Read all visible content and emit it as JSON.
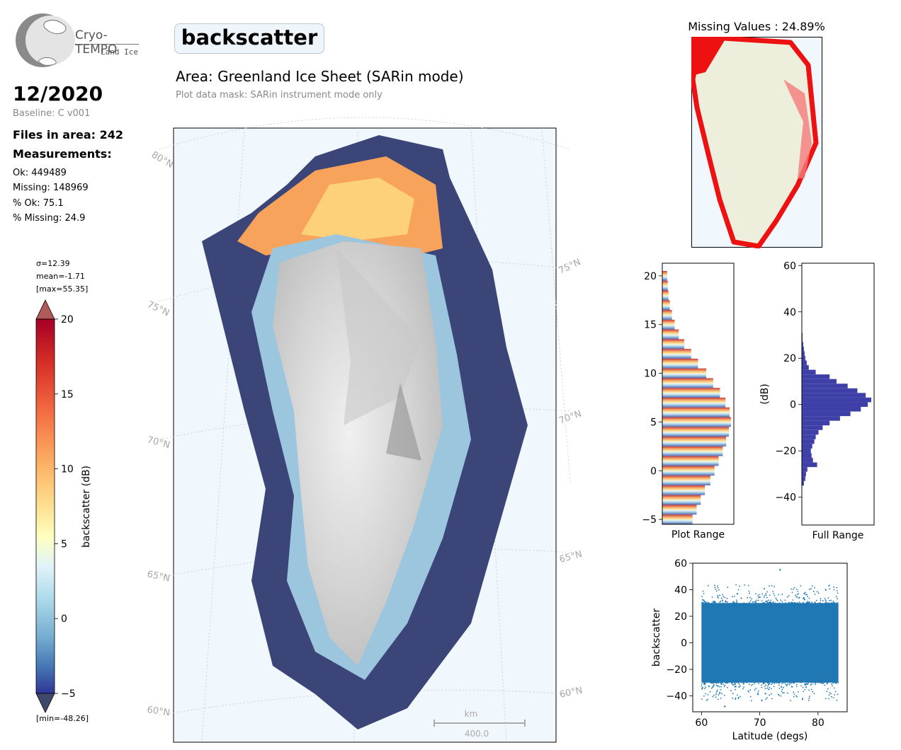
{
  "logo": {
    "name": "Cryo-TEMPO",
    "sub": "Land Ice"
  },
  "title": "backscatter",
  "area": "Area: Greenland Ice Sheet (SARin mode)",
  "mask_note": "Plot data mask: SARin instrument mode only",
  "date": "12/2020",
  "baseline": "Baseline: C v001",
  "files": "Files in area: 242",
  "measurements_heading": "Measurements:",
  "stats": {
    "ok": "Ok: 449489",
    "missing": "Missing: 148969",
    "pct_ok": "% Ok: 75.1",
    "pct_missing": "% Missing: 24.9"
  },
  "colorbar": {
    "sigma": "σ=12.39",
    "mean": "mean=-1.71",
    "max": "[max=55.35]",
    "min": "[min=-48.26]",
    "label": "backscatter (dB)",
    "ticks": [
      "20",
      "15",
      "10",
      "5",
      "0",
      "−5"
    ]
  },
  "map": {
    "lat_labels_left": [
      "80°N",
      "75°N",
      "70°N",
      "65°N",
      "60°N"
    ],
    "lat_labels_right": [
      "75°N",
      "70°N",
      "65°N",
      "60°N"
    ],
    "scale_unit": "km",
    "scale_value": "400.0"
  },
  "missing_map": {
    "title": "Missing Values : 24.89%"
  },
  "chart_data": [
    {
      "type": "bar",
      "orientation": "horizontal",
      "xlabel": "Plot Range",
      "ylabel": "",
      "ylim": [
        -5.5,
        21.3
      ],
      "yticks": [
        "−5",
        "0",
        "5",
        "10",
        "15",
        "20"
      ],
      "bins": [
        -5,
        -4,
        -3,
        -2,
        -1,
        0,
        1,
        2,
        3,
        4,
        5,
        6,
        7,
        8,
        9,
        10,
        11,
        12,
        13,
        14,
        15,
        16,
        17,
        18,
        19,
        20
      ],
      "relative_counts": [
        0.44,
        0.5,
        0.56,
        0.62,
        0.7,
        0.76,
        0.82,
        0.88,
        0.93,
        0.97,
        1.0,
        0.98,
        0.92,
        0.84,
        0.74,
        0.64,
        0.52,
        0.42,
        0.32,
        0.24,
        0.18,
        0.14,
        0.11,
        0.09,
        0.08,
        0.07
      ]
    },
    {
      "type": "bar",
      "orientation": "horizontal",
      "xlabel": "Full Range",
      "ylabel": "(dB)",
      "ylim": [
        -52,
        61
      ],
      "yticks": [
        "−40",
        "−20",
        "0",
        "20",
        "40",
        "60"
      ],
      "bins": [
        -34,
        -32,
        -30,
        -28,
        -26,
        -24,
        -22,
        -20,
        -18,
        -16,
        -14,
        -12,
        -10,
        -8,
        -6,
        -4,
        -2,
        0,
        2,
        4,
        6,
        8,
        10,
        12,
        14,
        16,
        18,
        20,
        22,
        24,
        26,
        28,
        30
      ],
      "relative_counts": [
        0.03,
        0.05,
        0.06,
        0.08,
        0.22,
        0.16,
        0.14,
        0.13,
        0.15,
        0.18,
        0.2,
        0.24,
        0.3,
        0.4,
        0.55,
        0.7,
        0.85,
        0.95,
        1.0,
        0.92,
        0.8,
        0.66,
        0.5,
        0.4,
        0.2,
        0.1,
        0.07,
        0.05,
        0.04,
        0.03,
        0.02,
        0.01,
        0.01
      ]
    },
    {
      "type": "scatter",
      "xlabel": "Latitude (degs)",
      "ylabel": "backscatter",
      "xlim": [
        58.5,
        85
      ],
      "ylim": [
        -52,
        60
      ],
      "xticks": [
        "60",
        "70",
        "80"
      ],
      "yticks": [
        "−40",
        "−20",
        "0",
        "20",
        "40",
        "60"
      ],
      "x_range": [
        60,
        83.5
      ],
      "y_band": [
        -30,
        30
      ],
      "y_outliers": [
        -48,
        55
      ]
    }
  ]
}
